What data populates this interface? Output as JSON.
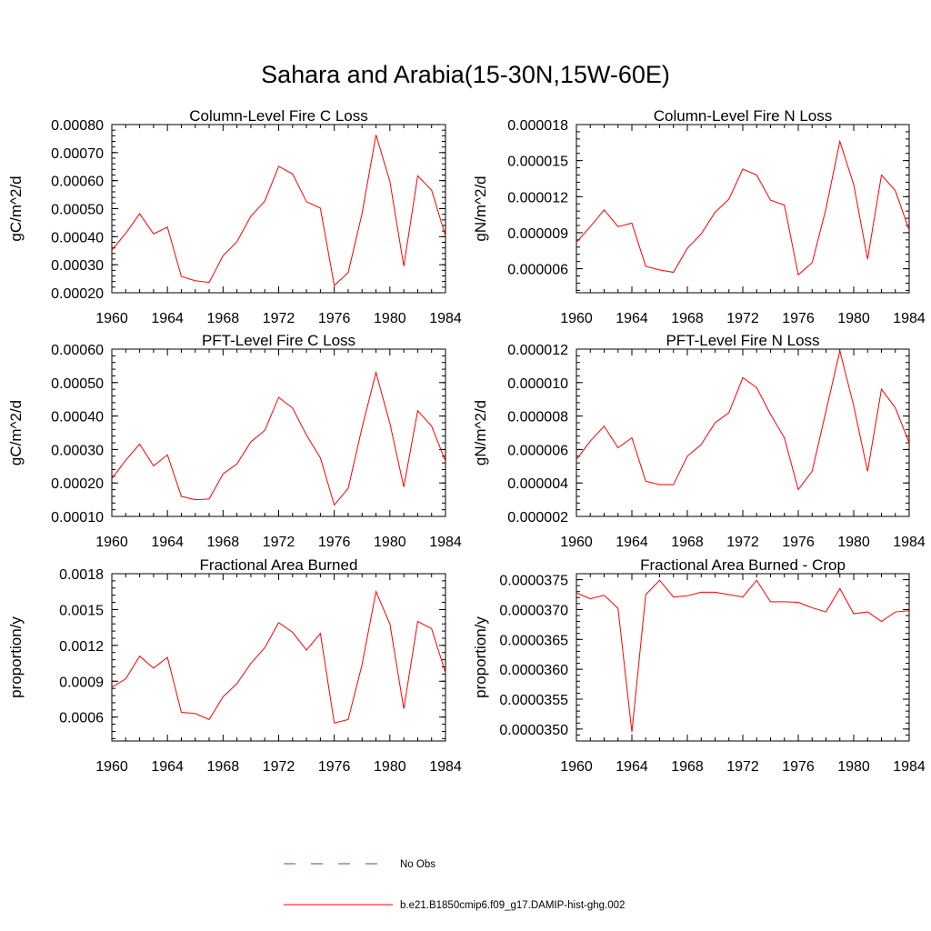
{
  "figure": {
    "title": "Sahara and Arabia(15-30N,15W-60E)"
  },
  "colors": {
    "model": "#ff0000",
    "obs": "#4a4acc",
    "axis": "#000000"
  },
  "legend": {
    "entries": [
      {
        "label": "No Obs",
        "style": "dashed",
        "color": "#4a4acc"
      },
      {
        "label": "b.e21.B1850cmip6.f09_g17.DAMIP-hist-ghg.002",
        "style": "solid",
        "color": "#ff0000"
      }
    ]
  },
  "chart_data": [
    {
      "type": "line",
      "title": "Column-Level Fire C Loss",
      "ylabel": "gC/m^2/d",
      "xlim": [
        1960,
        1984
      ],
      "ylim": [
        0.0002,
        0.0008
      ],
      "xticks": [
        1960,
        1964,
        1968,
        1972,
        1976,
        1980,
        1984
      ],
      "yticks": [
        0.0002,
        0.0003,
        0.0004,
        0.0005,
        0.0006,
        0.0007,
        0.0008
      ],
      "ytick_labels": [
        "0.00020",
        "0.00030",
        "0.00040",
        "0.00050",
        "0.00060",
        "0.00070",
        "0.00080"
      ],
      "x": [
        1960,
        1961,
        1962,
        1963,
        1964,
        1965,
        1966,
        1967,
        1968,
        1969,
        1970,
        1971,
        1972,
        1973,
        1974,
        1975,
        1976,
        1977,
        1978,
        1979,
        1980,
        1981,
        1982,
        1983,
        1984
      ],
      "series": [
        {
          "name": "b.e21.B1850cmip6.f09_g17.DAMIP-hist-ghg.002",
          "values": [
            0.000352,
            0.000412,
            0.000482,
            0.00041,
            0.000434,
            0.000258,
            0.000243,
            0.000237,
            0.000332,
            0.000382,
            0.000473,
            0.000527,
            0.000651,
            0.000624,
            0.000525,
            0.000502,
            0.000226,
            0.000272,
            0.000483,
            0.000763,
            0.000597,
            0.000295,
            0.000617,
            0.000566,
            0.000403
          ]
        }
      ]
    },
    {
      "type": "line",
      "title": "Column-Level Fire N Loss",
      "ylabel": "gN/m^2/d",
      "xlim": [
        1960,
        1984
      ],
      "ylim": [
        4e-06,
        1.8e-05
      ],
      "xticks": [
        1960,
        1964,
        1968,
        1972,
        1976,
        1980,
        1984
      ],
      "yticks": [
        6e-06,
        9e-06,
        1.2e-05,
        1.5e-05,
        1.8e-05
      ],
      "ytick_labels": [
        "0.000006",
        "0.000009",
        "0.000012",
        "0.000015",
        "0.000018"
      ],
      "x": [
        1960,
        1961,
        1962,
        1963,
        1964,
        1965,
        1966,
        1967,
        1968,
        1969,
        1970,
        1971,
        1972,
        1973,
        1974,
        1975,
        1976,
        1977,
        1978,
        1979,
        1980,
        1981,
        1982,
        1983,
        1984
      ],
      "series": [
        {
          "name": "b.e21.B1850cmip6.f09_g17.DAMIP-hist-ghg.002",
          "values": [
            8.2e-06,
            9.5e-06,
            1.09e-05,
            9.5e-06,
            9.8e-06,
            6.2e-06,
            5.9e-06,
            5.7e-06,
            7.7e-06,
            8.9e-06,
            1.07e-05,
            1.18e-05,
            1.43e-05,
            1.38e-05,
            1.17e-05,
            1.13e-05,
            5.5e-06,
            6.5e-06,
            1.1e-05,
            1.66e-05,
            1.3e-05,
            6.8e-06,
            1.38e-05,
            1.25e-05,
            9.2e-06
          ]
        }
      ]
    },
    {
      "type": "line",
      "title": "PFT-Level Fire C Loss",
      "ylabel": "gC/m^2/d",
      "xlim": [
        1960,
        1984
      ],
      "ylim": [
        0.0001,
        0.0006
      ],
      "xticks": [
        1960,
        1964,
        1968,
        1972,
        1976,
        1980,
        1984
      ],
      "yticks": [
        0.0001,
        0.0002,
        0.0003,
        0.0004,
        0.0005,
        0.0006
      ],
      "ytick_labels": [
        "0.00010",
        "0.00020",
        "0.00030",
        "0.00040",
        "0.00050",
        "0.00060"
      ],
      "x": [
        1960,
        1961,
        1962,
        1963,
        1964,
        1965,
        1966,
        1967,
        1968,
        1969,
        1970,
        1971,
        1972,
        1973,
        1974,
        1975,
        1976,
        1977,
        1978,
        1979,
        1980,
        1981,
        1982,
        1983,
        1984
      ],
      "series": [
        {
          "name": "b.e21.B1850cmip6.f09_g17.DAMIP-hist-ghg.002",
          "values": [
            0.000213,
            0.000268,
            0.000316,
            0.000251,
            0.000284,
            0.00016,
            0.00015,
            0.000152,
            0.000227,
            0.000257,
            0.000323,
            0.000357,
            0.000456,
            0.000424,
            0.000343,
            0.000275,
            0.000134,
            0.000184,
            0.000366,
            0.00053,
            0.000378,
            0.000188,
            0.000416,
            0.00037,
            0.000265
          ]
        }
      ]
    },
    {
      "type": "line",
      "title": "PFT-Level Fire N Loss",
      "ylabel": "gN/m^2/d",
      "xlim": [
        1960,
        1984
      ],
      "ylim": [
        2e-06,
        1.2e-05
      ],
      "xticks": [
        1960,
        1964,
        1968,
        1972,
        1976,
        1980,
        1984
      ],
      "yticks": [
        2e-06,
        4e-06,
        6e-06,
        8e-06,
        1e-05,
        1.2e-05
      ],
      "ytick_labels": [
        "0.000002",
        "0.000004",
        "0.000006",
        "0.000008",
        "0.000010",
        "0.000012"
      ],
      "x": [
        1960,
        1961,
        1962,
        1963,
        1964,
        1965,
        1966,
        1967,
        1968,
        1969,
        1970,
        1971,
        1972,
        1973,
        1974,
        1975,
        1976,
        1977,
        1978,
        1979,
        1980,
        1981,
        1982,
        1983,
        1984
      ],
      "series": [
        {
          "name": "b.e21.B1850cmip6.f09_g17.DAMIP-hist-ghg.002",
          "values": [
            5.4e-06,
            6.5e-06,
            7.4e-06,
            6.1e-06,
            6.7e-06,
            4.1e-06,
            3.9e-06,
            3.9e-06,
            5.6e-06,
            6.3e-06,
            7.6e-06,
            8.2e-06,
            1.03e-05,
            9.7e-06,
            8.1e-06,
            6.7e-06,
            3.6e-06,
            4.7e-06,
            8.3e-06,
            1.19e-05,
            8.6e-06,
            4.7e-06,
            9.6e-06,
            8.5e-06,
            6.4e-06
          ]
        }
      ]
    },
    {
      "type": "line",
      "title": "Fractional Area Burned",
      "ylabel": "proportion/y",
      "xlim": [
        1960,
        1984
      ],
      "ylim": [
        0.0004,
        0.0018
      ],
      "xticks": [
        1960,
        1964,
        1968,
        1972,
        1976,
        1980,
        1984
      ],
      "yticks": [
        0.0006,
        0.0009,
        0.0012,
        0.0015,
        0.0018
      ],
      "ytick_labels": [
        "0.0006",
        "0.0009",
        "0.0012",
        "0.0015",
        "0.0018"
      ],
      "x": [
        1960,
        1961,
        1962,
        1963,
        1964,
        1965,
        1966,
        1967,
        1968,
        1969,
        1970,
        1971,
        1972,
        1973,
        1974,
        1975,
        1976,
        1977,
        1978,
        1979,
        1980,
        1981,
        1982,
        1983,
        1984
      ],
      "series": [
        {
          "name": "b.e21.B1850cmip6.f09_g17.DAMIP-hist-ghg.002",
          "values": [
            0.00085,
            0.00092,
            0.00111,
            0.00101,
            0.0011,
            0.00064,
            0.00063,
            0.00058,
            0.00077,
            0.00088,
            0.00105,
            0.00118,
            0.00139,
            0.00131,
            0.00116,
            0.0013,
            0.00055,
            0.00058,
            0.00104,
            0.00165,
            0.00138,
            0.00067,
            0.0014,
            0.00134,
            0.00097
          ]
        }
      ]
    },
    {
      "type": "line",
      "title": "Fractional Area Burned - Crop",
      "ylabel": "proportion/y",
      "xlim": [
        1960,
        1984
      ],
      "ylim": [
        3.48e-05,
        3.76e-05
      ],
      "xticks": [
        1960,
        1964,
        1968,
        1972,
        1976,
        1980,
        1984
      ],
      "yticks": [
        3.5e-05,
        3.55e-05,
        3.6e-05,
        3.65e-05,
        3.7e-05,
        3.75e-05
      ],
      "ytick_labels": [
        "0.0000350",
        "0.0000355",
        "0.0000360",
        "0.0000365",
        "0.0000370",
        "0.0000375"
      ],
      "x": [
        1960,
        1961,
        1962,
        1963,
        1964,
        1965,
        1966,
        1967,
        1968,
        1969,
        1970,
        1971,
        1972,
        1973,
        1974,
        1975,
        1976,
        1977,
        1978,
        1979,
        1980,
        1981,
        1982,
        1983,
        1984
      ],
      "series": [
        {
          "name": "b.e21.B1850cmip6.f09_g17.DAMIP-hist-ghg.002",
          "values": [
            3.728e-05,
            3.718e-05,
            3.724e-05,
            3.702e-05,
            3.495e-05,
            3.725e-05,
            3.749e-05,
            3.721e-05,
            3.723e-05,
            3.729e-05,
            3.729e-05,
            3.725e-05,
            3.721e-05,
            3.749e-05,
            3.713e-05,
            3.713e-05,
            3.712e-05,
            3.703e-05,
            3.696e-05,
            3.735e-05,
            3.693e-05,
            3.696e-05,
            3.68e-05,
            3.696e-05,
            3.698e-05
          ]
        }
      ]
    }
  ]
}
